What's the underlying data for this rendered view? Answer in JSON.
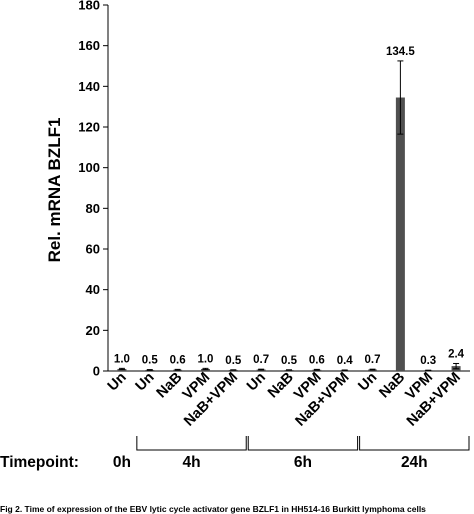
{
  "chart_data": {
    "type": "bar",
    "title": "",
    "ylabel": "Rel. mRNA BZLF1",
    "xlabel": "",
    "ylim": [
      0,
      180
    ],
    "yticks": [
      0,
      20,
      40,
      60,
      80,
      100,
      120,
      140,
      160,
      180
    ],
    "grid": false,
    "bar_color": "#505050",
    "categories": [
      "Un",
      "Un",
      "NaB",
      "VPM",
      "NaB+VPM",
      "Un",
      "NaB",
      "VPM",
      "NaB+VPM",
      "Un",
      "NaB",
      "VPM",
      "NaB+VPM"
    ],
    "values": [
      1.0,
      0.5,
      0.6,
      1.0,
      0.5,
      0.7,
      0.5,
      0.6,
      0.4,
      0.7,
      134.5,
      0.3,
      2.4
    ],
    "value_labels": [
      "1.0",
      "0.5",
      "0.6",
      "1.0",
      "0.5",
      "0.7",
      "0.5",
      "0.6",
      "0.4",
      "0.7",
      "134.5",
      "0.3",
      "2.4"
    ],
    "errors": [
      0.3,
      0.2,
      0.2,
      0.3,
      0.1,
      0.2,
      0.1,
      0.2,
      0.1,
      0.2,
      18,
      0.1,
      1.3
    ],
    "timepoint_label": "Timepoint:",
    "timepoints": [
      {
        "label": "0h",
        "start": 0,
        "end": 0
      },
      {
        "label": "4h",
        "start": 1,
        "end": 4
      },
      {
        "label": "6h",
        "start": 5,
        "end": 8
      },
      {
        "label": "24h",
        "start": 9,
        "end": 12
      }
    ]
  },
  "caption": "Fig 2. Time of expression of the EBV lytic cycle activator gene BZLF1 in HH514-16 Burkitt lymphoma cells"
}
